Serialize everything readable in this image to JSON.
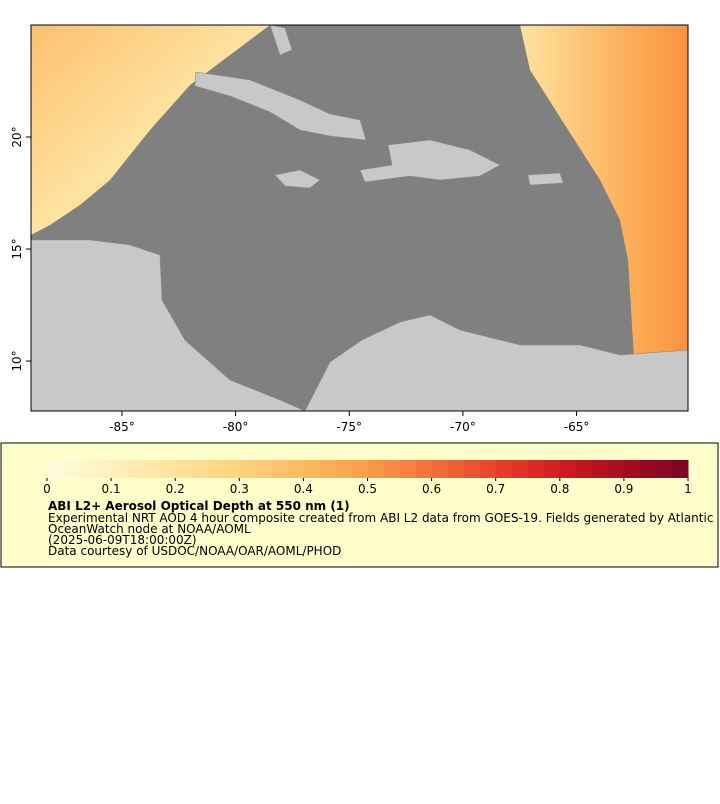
{
  "map": {
    "xlim": [
      -89.0,
      -60.1
    ],
    "ylim": [
      7.77,
      25.0
    ],
    "xticks": [
      {
        "value": -85,
        "label": "-85°"
      },
      {
        "value": -80,
        "label": "-80°"
      },
      {
        "value": -75,
        "label": "-75°"
      },
      {
        "value": -70,
        "label": "-70°"
      },
      {
        "value": -65,
        "label": "-65°"
      }
    ],
    "yticks": [
      {
        "value": 10,
        "label": "10°"
      },
      {
        "value": 15,
        "label": "15°"
      },
      {
        "value": 20,
        "label": "20°"
      }
    ]
  },
  "colorbar": {
    "range": [
      0,
      1
    ],
    "ticks": [
      0,
      0.1,
      0.2,
      0.3,
      0.4,
      0.5,
      0.6,
      0.7,
      0.8,
      0.9,
      1
    ],
    "colors": [
      "#fffbe0",
      "#fff0bc",
      "#fee39c",
      "#fdd27e",
      "#fdbb62",
      "#fb9c4c",
      "#f56f3c",
      "#e8412d",
      "#d01c20",
      "#a80c22",
      "#7a0424"
    ]
  },
  "legend": {
    "title": "ABI L2+ Aerosol Optical Depth at 550 nm (1)",
    "lines": [
      "Experimental NRT AOD 4 hour composite created from ABI L2 data from GOES-19. Fields generated by Atlantic",
      "OceanWatch node at NOAA/AOML",
      "(2025-06-09T18:00:00Z)",
      "Data courtesy of USDOC/NOAA/OAR/AOML/PHOD"
    ]
  }
}
